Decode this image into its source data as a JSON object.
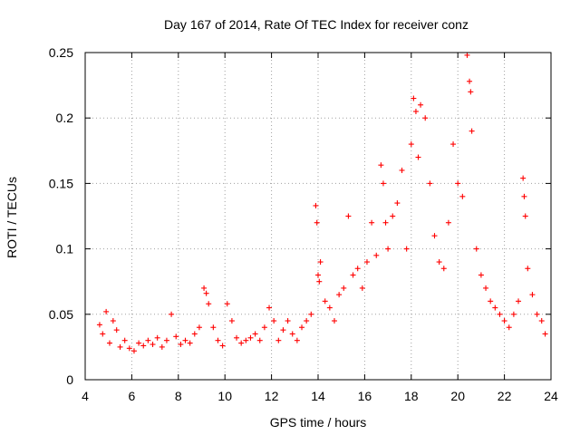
{
  "chart_data": {
    "type": "scatter",
    "title": "Day 167 of 2014, Rate Of TEC Index for receiver conz",
    "xlabel": "GPS time / hours",
    "ylabel": "ROTI / TECUs",
    "xlim": [
      4,
      24
    ],
    "ylim": [
      0,
      0.25
    ],
    "xticks": [
      4,
      6,
      8,
      10,
      12,
      14,
      16,
      18,
      20,
      22,
      24
    ],
    "yticks": [
      0,
      0.05,
      0.1,
      0.15,
      0.2,
      0.25
    ],
    "ytick_labels": [
      "0",
      "0.05",
      "0.1",
      "0.15",
      "0.2",
      "0.25"
    ],
    "grid": true,
    "marker": "+",
    "color": "#ff0000",
    "series": [
      {
        "name": "ROTI",
        "x": [
          4.62,
          4.75,
          4.9,
          5.05,
          5.2,
          5.35,
          5.5,
          5.7,
          5.9,
          6.1,
          6.3,
          6.5,
          6.7,
          6.9,
          7.1,
          7.3,
          7.5,
          7.7,
          7.9,
          8.1,
          8.3,
          8.5,
          8.7,
          8.9,
          9.1,
          9.2,
          9.3,
          9.5,
          9.7,
          9.9,
          10.1,
          10.3,
          10.5,
          10.7,
          10.9,
          11.1,
          11.3,
          11.5,
          11.7,
          11.9,
          12.1,
          12.3,
          12.5,
          12.7,
          12.9,
          13.1,
          13.3,
          13.5,
          13.7,
          13.9,
          13.95,
          14.0,
          14.05,
          14.1,
          14.3,
          14.5,
          14.7,
          14.9,
          15.1,
          15.3,
          15.5,
          15.7,
          15.9,
          16.1,
          16.3,
          16.5,
          16.7,
          16.8,
          16.9,
          17.0,
          17.2,
          17.4,
          17.6,
          17.8,
          18.0,
          18.1,
          18.2,
          18.3,
          18.4,
          18.6,
          18.8,
          19.0,
          19.2,
          19.4,
          19.6,
          19.8,
          20.0,
          20.2,
          20.4,
          20.5,
          20.55,
          20.6,
          20.8,
          21.0,
          21.2,
          21.4,
          21.6,
          21.8,
          22.0,
          22.2,
          22.4,
          22.6,
          22.8,
          22.85,
          22.9,
          23.0,
          23.2,
          23.4,
          23.6,
          23.75
        ],
        "y": [
          0.042,
          0.035,
          0.052,
          0.028,
          0.045,
          0.038,
          0.025,
          0.03,
          0.024,
          0.022,
          0.028,
          0.026,
          0.03,
          0.027,
          0.032,
          0.025,
          0.03,
          0.05,
          0.033,
          0.027,
          0.03,
          0.028,
          0.035,
          0.04,
          0.07,
          0.066,
          0.058,
          0.04,
          0.03,
          0.026,
          0.058,
          0.045,
          0.032,
          0.028,
          0.03,
          0.032,
          0.035,
          0.03,
          0.04,
          0.055,
          0.045,
          0.03,
          0.038,
          0.045,
          0.035,
          0.03,
          0.04,
          0.045,
          0.05,
          0.133,
          0.12,
          0.08,
          0.075,
          0.09,
          0.06,
          0.055,
          0.045,
          0.065,
          0.07,
          0.125,
          0.08,
          0.085,
          0.07,
          0.09,
          0.12,
          0.095,
          0.164,
          0.15,
          0.12,
          0.1,
          0.125,
          0.135,
          0.16,
          0.1,
          0.18,
          0.215,
          0.205,
          0.17,
          0.21,
          0.2,
          0.15,
          0.11,
          0.09,
          0.085,
          0.12,
          0.18,
          0.15,
          0.14,
          0.248,
          0.228,
          0.22,
          0.19,
          0.1,
          0.08,
          0.07,
          0.06,
          0.055,
          0.05,
          0.045,
          0.04,
          0.05,
          0.06,
          0.154,
          0.14,
          0.125,
          0.085,
          0.065,
          0.05,
          0.045,
          0.035
        ]
      }
    ]
  }
}
